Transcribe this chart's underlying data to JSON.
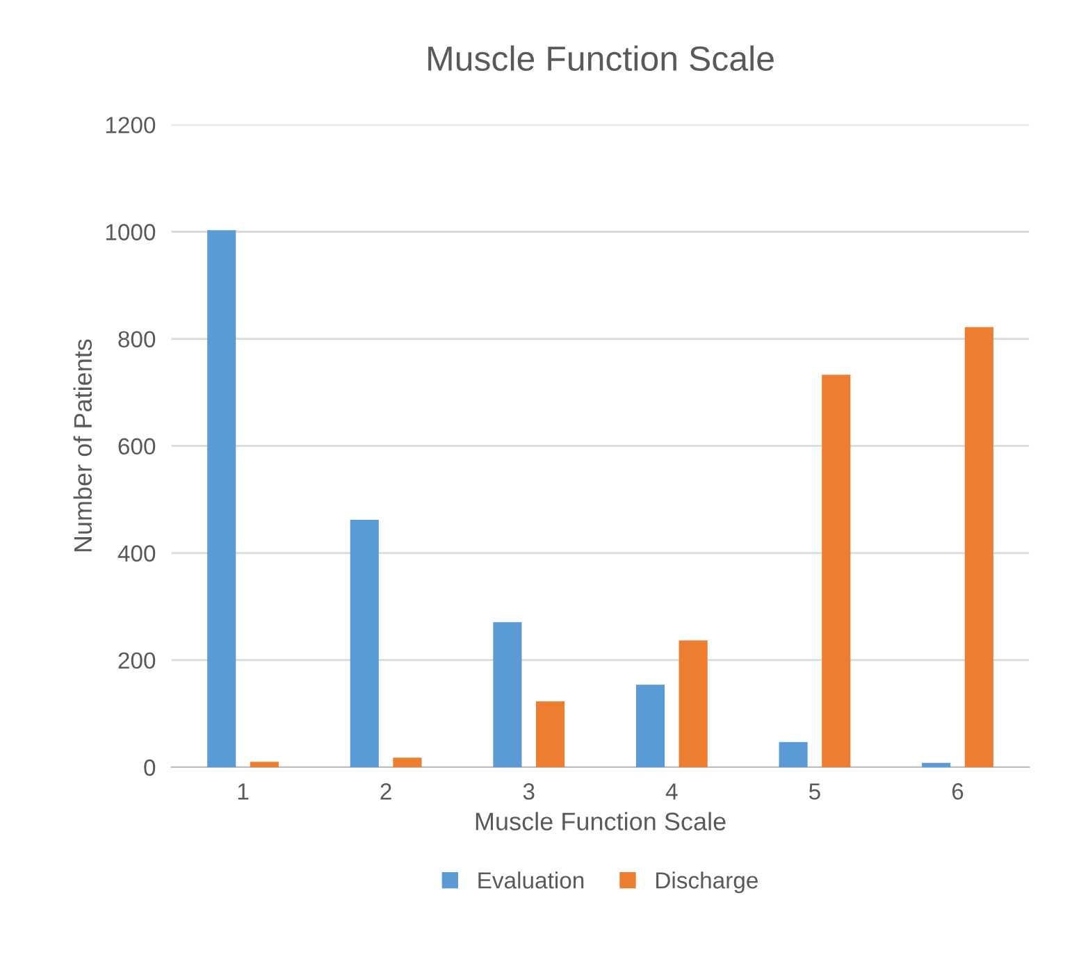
{
  "chart_data": {
    "type": "bar",
    "title": "Muscle Function Scale",
    "xlabel": "Muscle Function Scale",
    "ylabel": "Number of Patients",
    "categories": [
      "1",
      "2",
      "3",
      "4",
      "5",
      "6"
    ],
    "series": [
      {
        "name": "Evaluation",
        "color": "#5b9bd5",
        "values": [
          1003,
          462,
          271,
          154,
          47,
          8
        ]
      },
      {
        "name": "Discharge",
        "color": "#ed7d31",
        "values": [
          10,
          18,
          123,
          237,
          733,
          822
        ]
      }
    ],
    "ylim": [
      0,
      1200
    ],
    "yticks": [
      0,
      200,
      400,
      600,
      800,
      1000,
      1200
    ],
    "grid": "y",
    "legend": "bottom"
  }
}
